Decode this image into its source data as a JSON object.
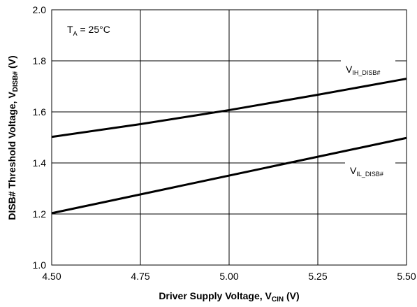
{
  "chart_data": {
    "type": "line",
    "xlabel": "Driver Supply Voltage, V",
    "xlabel_sub": "CIN",
    "xlabel_unit": " (V)",
    "ylabel": "DISB# Threshold Voltage, V",
    "ylabel_sub": "DISB#",
    "ylabel_unit": " (V)",
    "xlim": [
      4.5,
      5.5
    ],
    "ylim": [
      1.0,
      2.0
    ],
    "x_ticks": [
      4.5,
      4.75,
      5.0,
      5.25,
      5.5
    ],
    "x_tick_labels": [
      "4.50",
      "4.75",
      "5.00",
      "5.25",
      "5.50"
    ],
    "y_ticks": [
      1.0,
      1.2,
      1.4,
      1.6,
      1.8,
      2.0
    ],
    "y_tick_labels": [
      "1.0",
      "1.2",
      "1.4",
      "1.6",
      "1.8",
      "2.0"
    ],
    "grid": true,
    "condition": {
      "prefix": "T",
      "sub": "A",
      "rest": " = 25°C"
    },
    "series": [
      {
        "name": "V",
        "name_sub": "IH_DISB#",
        "x": [
          4.5,
          4.75,
          4.9,
          5.0,
          5.25,
          5.5
        ],
        "y": [
          1.502,
          1.552,
          1.585,
          1.607,
          1.667,
          1.73
        ]
      },
      {
        "name": "V",
        "name_sub": "IL_DISB#",
        "x": [
          4.5,
          5.5
        ],
        "y": [
          1.203,
          1.498
        ]
      }
    ],
    "line_color": "#000000",
    "grid_color": "#000000"
  }
}
